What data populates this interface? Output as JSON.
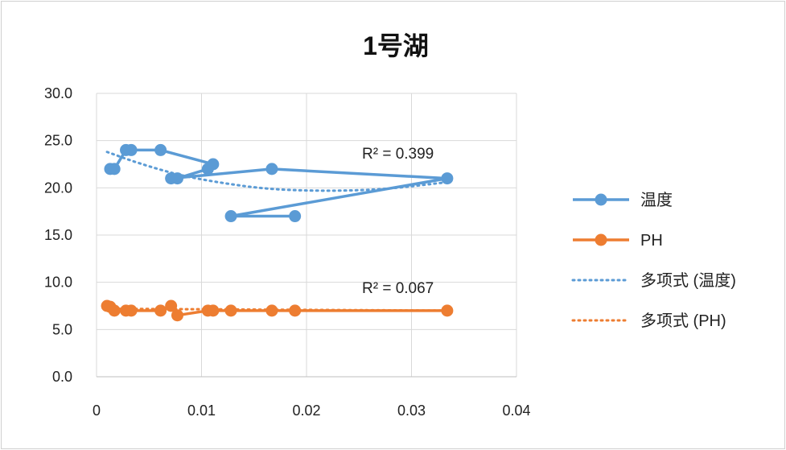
{
  "chart_data": {
    "type": "scatter",
    "title": "1号湖",
    "xlabel": "",
    "ylabel": "",
    "xlim": [
      0,
      0.04
    ],
    "ylim": [
      0,
      30
    ],
    "xticks": [
      "0",
      "0.01",
      "0.02",
      "0.03",
      "0.04"
    ],
    "yticks": [
      "0.0",
      "5.0",
      "10.0",
      "15.0",
      "20.0",
      "25.0",
      "30.0"
    ],
    "xtick_values": [
      0,
      0.01,
      0.02,
      0.03,
      0.04
    ],
    "ytick_values": [
      0,
      5,
      10,
      15,
      20,
      25,
      30
    ],
    "grid": true,
    "legend_position": "right",
    "series": [
      {
        "name": "温度",
        "color": "#5b9bd5",
        "x": [
          0.0013,
          0.0017,
          0.0028,
          0.0033,
          0.0061,
          0.0111,
          0.0106,
          0.0077,
          0.0071,
          0.0167,
          0.0334,
          0.0128,
          0.0189
        ],
        "y": [
          22,
          22,
          24,
          24,
          24,
          22.5,
          22,
          21,
          21,
          22,
          21,
          17,
          17
        ]
      },
      {
        "name": "PH",
        "color": "#ed7d31",
        "x": [
          0.001,
          0.0013,
          0.0017,
          0.0028,
          0.0033,
          0.0061,
          0.0071,
          0.0077,
          0.0106,
          0.0111,
          0.0128,
          0.0167,
          0.0189,
          0.0334
        ],
        "y": [
          7.5,
          7.4,
          7,
          7,
          7,
          7,
          7.5,
          6.5,
          7,
          7,
          7,
          7,
          7,
          7
        ]
      },
      {
        "name": "多项式 (温度)",
        "color": "#5b9bd5",
        "style": "dotted",
        "trendline": true,
        "x": [
          0.001,
          0.004,
          0.008,
          0.012,
          0.016,
          0.02,
          0.024,
          0.028,
          0.0334
        ],
        "y": [
          23.8,
          22.6,
          21.3,
          20.5,
          19.9,
          19.7,
          19.7,
          19.9,
          20.6
        ]
      },
      {
        "name": "多项式 (PH)",
        "color": "#ed7d31",
        "style": "dotted",
        "trendline": true,
        "x": [
          0.001,
          0.0334
        ],
        "y": [
          7.2,
          7.0
        ]
      }
    ],
    "annotations": [
      "R² = 0.399",
      "R² = 0.067"
    ]
  }
}
